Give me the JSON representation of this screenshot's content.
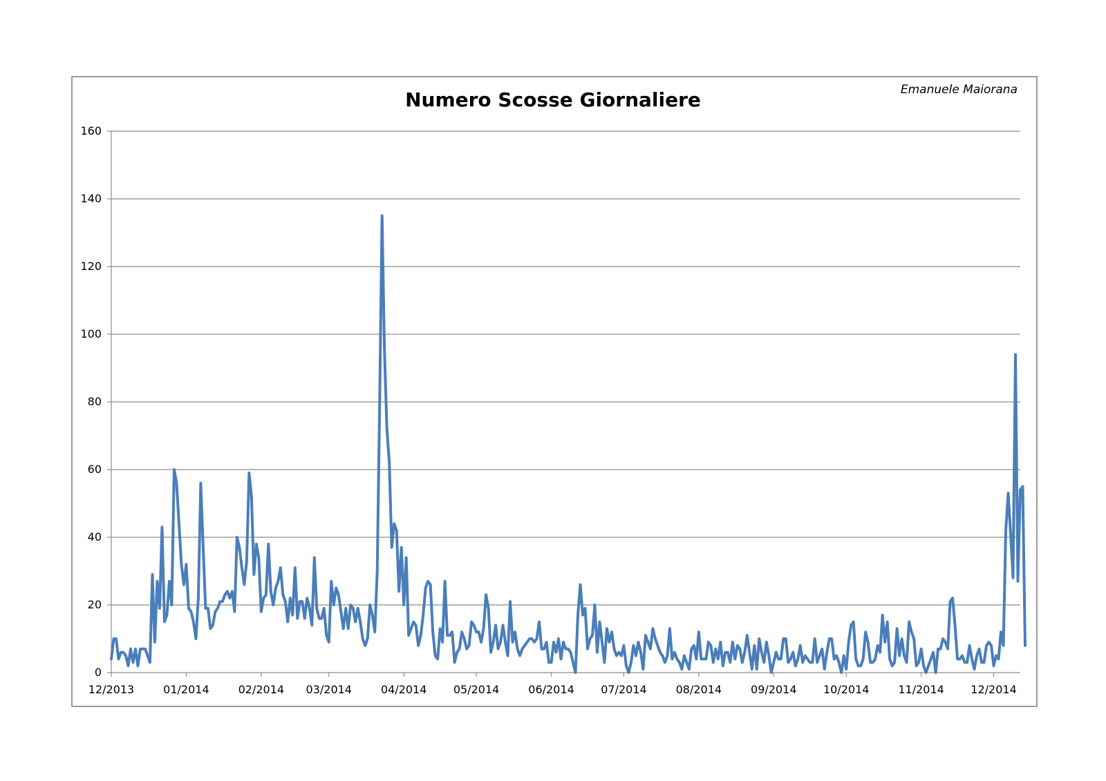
{
  "chart_data": {
    "type": "line",
    "title": "Numero Scosse Giornaliere",
    "author": "Emanuele Maiorana",
    "xlabel": "",
    "ylabel": "",
    "ylim": [
      0,
      160
    ],
    "y_ticks": [
      0,
      20,
      40,
      60,
      80,
      100,
      120,
      140,
      160
    ],
    "x_ticks": [
      "12/2013",
      "01/2014",
      "02/2014",
      "03/2014",
      "04/2014",
      "05/2014",
      "06/2014",
      "07/2014",
      "08/2014",
      "09/2014",
      "10/2014",
      "11/2014",
      "12/2014"
    ],
    "x_range": [
      "2013-12-01",
      "2014-12-12"
    ],
    "grid": "horizontal",
    "line_color": "#4a7ebb",
    "series": [
      {
        "x_start": "2013-12-01",
        "interval": "1 day",
        "values": [
          4,
          10,
          10,
          4,
          6,
          6,
          5,
          2,
          7,
          3,
          7,
          2,
          7,
          7,
          7,
          5,
          3,
          29,
          9,
          27,
          19,
          43,
          15,
          17,
          27,
          20,
          60,
          56,
          44,
          32,
          26,
          32,
          19,
          18,
          15,
          10,
          22,
          56,
          37,
          19,
          19,
          13,
          14,
          18,
          19,
          21,
          21,
          23,
          24,
          22,
          24,
          18,
          40,
          37,
          31,
          26,
          33,
          59,
          52,
          29,
          38,
          34,
          18,
          22,
          23,
          38,
          24,
          20,
          25,
          27,
          31,
          23,
          21,
          15,
          22,
          17,
          31,
          16,
          21,
          21,
          16,
          22,
          19,
          14,
          34,
          19,
          16,
          16,
          19,
          11,
          9,
          27,
          20,
          25,
          23,
          18,
          13,
          19,
          13,
          20,
          19,
          15,
          19,
          15,
          10,
          8,
          10,
          20,
          17,
          12,
          30,
          79,
          135,
          95,
          72,
          62,
          37,
          44,
          42,
          24,
          37,
          20,
          34,
          11,
          13,
          15,
          14,
          8,
          11,
          17,
          25,
          27,
          26,
          12,
          5,
          4,
          13,
          9,
          27,
          11,
          11,
          12,
          3,
          6,
          7,
          12,
          10,
          7,
          8,
          15,
          14,
          12,
          12,
          9,
          13,
          23,
          19,
          6,
          9,
          14,
          7,
          9,
          14,
          9,
          5,
          21,
          9,
          12,
          7,
          5,
          7,
          8,
          9,
          10,
          10,
          9,
          10,
          15,
          7,
          7,
          9,
          3,
          3,
          9,
          6,
          10,
          4,
          9,
          7,
          7,
          6,
          3,
          0,
          17,
          26,
          17,
          19,
          7,
          10,
          11,
          20,
          6,
          15,
          9,
          3,
          13,
          9,
          12,
          7,
          5,
          6,
          5,
          8,
          2,
          0,
          3,
          8,
          5,
          9,
          6,
          1,
          11,
          9,
          7,
          13,
          10,
          8,
          6,
          5,
          3,
          5,
          13,
          4,
          6,
          4,
          3,
          1,
          5,
          3,
          1,
          7,
          8,
          4,
          12,
          4,
          4,
          4,
          9,
          8,
          3,
          7,
          4,
          9,
          2,
          6,
          6,
          3,
          9,
          4,
          8,
          7,
          3,
          6,
          11,
          6,
          1,
          8,
          1,
          10,
          6,
          3,
          9,
          5,
          0,
          3,
          6,
          4,
          4,
          10,
          10,
          3,
          4,
          6,
          2,
          4,
          8,
          3,
          5,
          4,
          3,
          3,
          10,
          3,
          5,
          7,
          1,
          6,
          10,
          10,
          4,
          5,
          3,
          0,
          5,
          1,
          9,
          14,
          15,
          4,
          2,
          2,
          4,
          12,
          9,
          3,
          3,
          4,
          8,
          6,
          17,
          9,
          15,
          4,
          2,
          3,
          13,
          5,
          10,
          5,
          3,
          15,
          12,
          10,
          2,
          3,
          7,
          2,
          0,
          2,
          4,
          6,
          0,
          7,
          7,
          10,
          9,
          7,
          21,
          22,
          14,
          4,
          4,
          5,
          3,
          3,
          8,
          4,
          1,
          5,
          7,
          3,
          3,
          8,
          9,
          8,
          2,
          5,
          4,
          12,
          8,
          42,
          53,
          41,
          28,
          94,
          27,
          54,
          55,
          8
        ]
      }
    ]
  }
}
